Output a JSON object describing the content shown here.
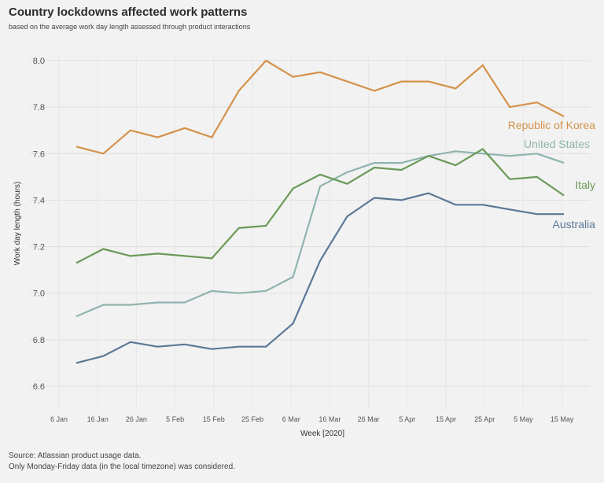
{
  "header": {
    "title": "Country lockdowns affected work patterns",
    "subtitle": "based on the average work day length assessed through product interactions"
  },
  "footer": {
    "source": "Source: Atlassian product usage data.",
    "note": "Only Monday-Friday data (in the local timezone) was considered."
  },
  "chart_data": {
    "type": "line",
    "title": "Country lockdowns affected work patterns",
    "subtitle": "based on the average work day length assessed through product interactions",
    "xlabel": "Week [2020]",
    "ylabel": "Work day length (hours)",
    "ylim": [
      6.5,
      8.1
    ],
    "yticks": [
      6.6,
      6.8,
      7.0,
      7.2,
      7.4,
      7.6,
      7.8,
      8.0
    ],
    "ytick_labels": [
      "6.6",
      "6.8",
      "7.0",
      "7.2",
      "7.4",
      "7.6",
      "7.8",
      "8.0"
    ],
    "xtick_labels": [
      "6 Jan",
      "16 Jan",
      "26 Jan",
      "5 Feb",
      "15 Feb",
      "25 Feb",
      "6 Mar",
      "16 Mar",
      "26 Mar",
      "5 Apr",
      "15 Apr",
      "25 Apr",
      "5 May",
      "15 May"
    ],
    "x": [
      "13 Jan",
      "20 Jan",
      "27 Jan",
      "3 Feb",
      "10 Feb",
      "17 Feb",
      "24 Feb",
      "2 Mar",
      "9 Mar",
      "16 Mar",
      "23 Mar",
      "30 Mar",
      "6 Apr",
      "13 Apr",
      "20 Apr",
      "27 Apr",
      "4 May",
      "11 May",
      "18 May"
    ],
    "grid": true,
    "legend": "labels at line ends",
    "series": [
      {
        "name": "Republic of Korea",
        "color": "#d4924a",
        "values": [
          7.63,
          7.6,
          7.7,
          7.67,
          7.71,
          7.67,
          7.87,
          8.0,
          7.93,
          7.95,
          7.91,
          7.87,
          7.91,
          7.91,
          7.88,
          7.98,
          7.8,
          7.82,
          7.76
        ]
      },
      {
        "name": "United States",
        "color": "#8fb4b0",
        "values": [
          6.9,
          6.95,
          6.95,
          6.96,
          6.96,
          7.01,
          7.0,
          7.01,
          7.07,
          7.46,
          7.52,
          7.56,
          7.56,
          7.59,
          7.61,
          7.6,
          7.59,
          7.6,
          7.56
        ]
      },
      {
        "name": "Italy",
        "color": "#6a9a58",
        "values": [
          7.13,
          7.19,
          7.16,
          7.17,
          7.16,
          7.15,
          7.28,
          7.29,
          7.45,
          7.51,
          7.47,
          7.54,
          7.53,
          7.59,
          7.55,
          7.62,
          7.49,
          7.5,
          7.42
        ]
      },
      {
        "name": "Australia",
        "color": "#5a7896",
        "values": [
          6.7,
          6.73,
          6.79,
          6.77,
          6.78,
          6.76,
          6.77,
          6.77,
          6.87,
          7.14,
          7.33,
          7.41,
          7.4,
          7.43,
          7.38,
          7.38,
          7.36,
          7.34,
          7.34
        ]
      }
    ]
  }
}
